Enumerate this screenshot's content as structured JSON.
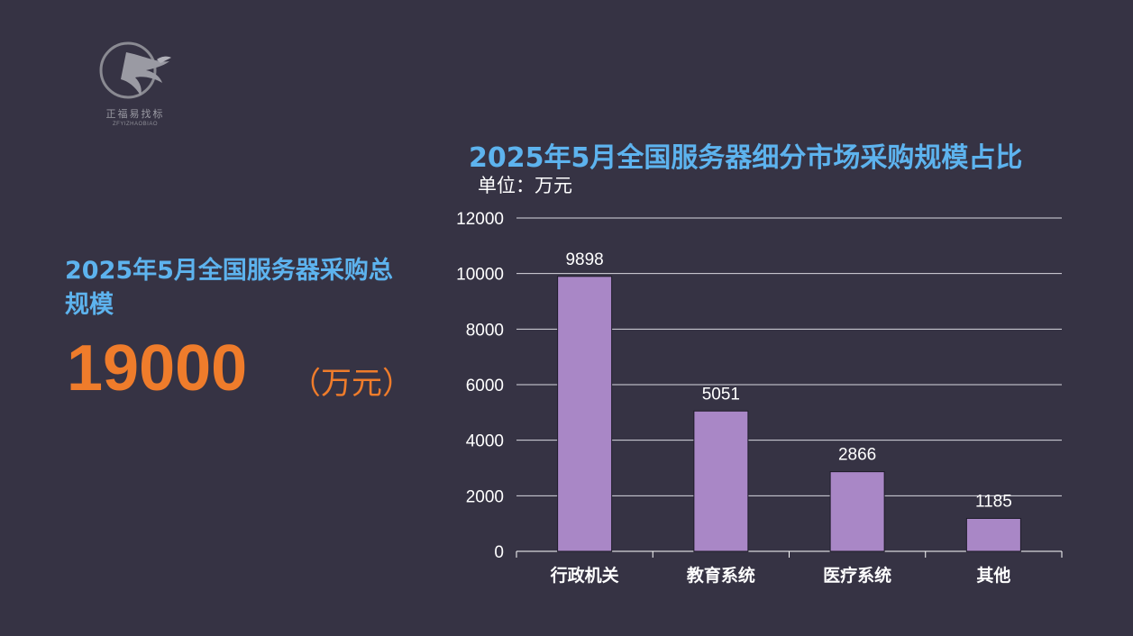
{
  "logo": {
    "name_cn": "正福易找标",
    "name_en": "ZFYIZHAOBIAO"
  },
  "summary": {
    "title": "2025年5月全国服务器采购总规模",
    "value": "19000",
    "unit": "（万元）"
  },
  "colors": {
    "background": "#363344",
    "accent_blue": "#5db3ee",
    "accent_orange": "#ef7c2b",
    "bar": "#a987c6"
  },
  "chart_data": {
    "type": "bar",
    "title": "2025年5月全国服务器细分市场采购规模占比",
    "unit_label": "单位：万元",
    "categories": [
      "行政机关",
      "教育系统",
      "医疗系统",
      "其他"
    ],
    "values": [
      9898,
      5051,
      2866,
      1185
    ],
    "ylim": [
      0,
      12000
    ],
    "yticks": [
      0,
      2000,
      4000,
      6000,
      8000,
      10000,
      12000
    ],
    "grid": true
  }
}
